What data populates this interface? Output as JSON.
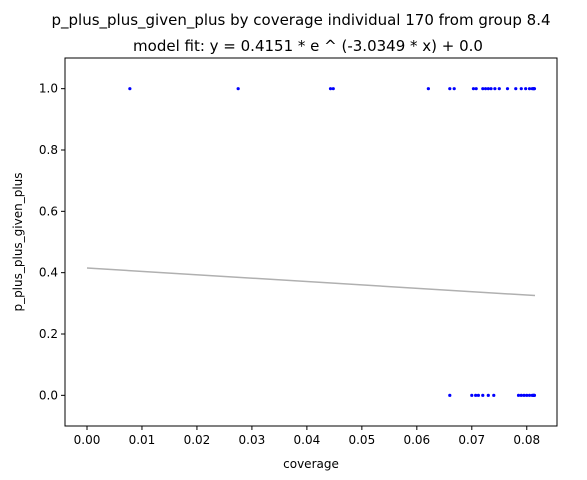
{
  "chart_data": {
    "type": "scatter",
    "title": "p_plus_plus_given_plus by coverage individual 170 from group 8.4",
    "subtitle": "model fit: y = 0.4151 * e ^ (-3.0349 * x) + 0.0",
    "xlabel": "coverage",
    "ylabel": "p_plus_plus_given_plus",
    "xlim": [
      -0.004,
      0.0855
    ],
    "ylim": [
      -0.1,
      1.1
    ],
    "x_ticks": [
      "0.00",
      "0.01",
      "0.02",
      "0.03",
      "0.04",
      "0.05",
      "0.06",
      "0.07",
      "0.08"
    ],
    "y_ticks": [
      "0.0",
      "0.2",
      "0.4",
      "0.6",
      "0.8",
      "1.0"
    ],
    "grid": false,
    "series": [
      {
        "color": "#0000ff",
        "points": [
          [
            0.0078,
            1.0
          ],
          [
            0.0275,
            1.0
          ],
          [
            0.0443,
            1.0
          ],
          [
            0.0448,
            1.0
          ],
          [
            0.0621,
            1.0
          ],
          [
            0.066,
            1.0
          ],
          [
            0.0668,
            1.0
          ],
          [
            0.0703,
            1.0
          ],
          [
            0.0708,
            1.0
          ],
          [
            0.072,
            1.0
          ],
          [
            0.0725,
            1.0
          ],
          [
            0.073,
            1.0
          ],
          [
            0.0735,
            1.0
          ],
          [
            0.0742,
            1.0
          ],
          [
            0.075,
            1.0
          ],
          [
            0.0765,
            1.0
          ],
          [
            0.078,
            1.0
          ],
          [
            0.079,
            1.0
          ],
          [
            0.0798,
            1.0
          ],
          [
            0.0805,
            1.0
          ],
          [
            0.081,
            1.0
          ],
          [
            0.0812,
            1.0
          ],
          [
            0.0813,
            1.0
          ],
          [
            0.0814,
            1.0
          ],
          [
            0.066,
            0.0
          ],
          [
            0.07,
            0.0
          ],
          [
            0.0707,
            0.0
          ],
          [
            0.0712,
            0.0
          ],
          [
            0.072,
            0.0
          ],
          [
            0.073,
            0.0
          ],
          [
            0.074,
            0.0
          ],
          [
            0.0785,
            0.0
          ],
          [
            0.079,
            0.0
          ],
          [
            0.0795,
            0.0
          ],
          [
            0.08,
            0.0
          ],
          [
            0.0805,
            0.0
          ],
          [
            0.081,
            0.0
          ],
          [
            0.0812,
            0.0
          ],
          [
            0.0813,
            0.0
          ],
          [
            0.0814,
            0.0
          ]
        ]
      },
      {
        "type": "line",
        "color": "#b0b0b0",
        "x": [
          0.0,
          0.0815
        ],
        "y": [
          0.4151,
          0.3254
        ]
      }
    ]
  }
}
